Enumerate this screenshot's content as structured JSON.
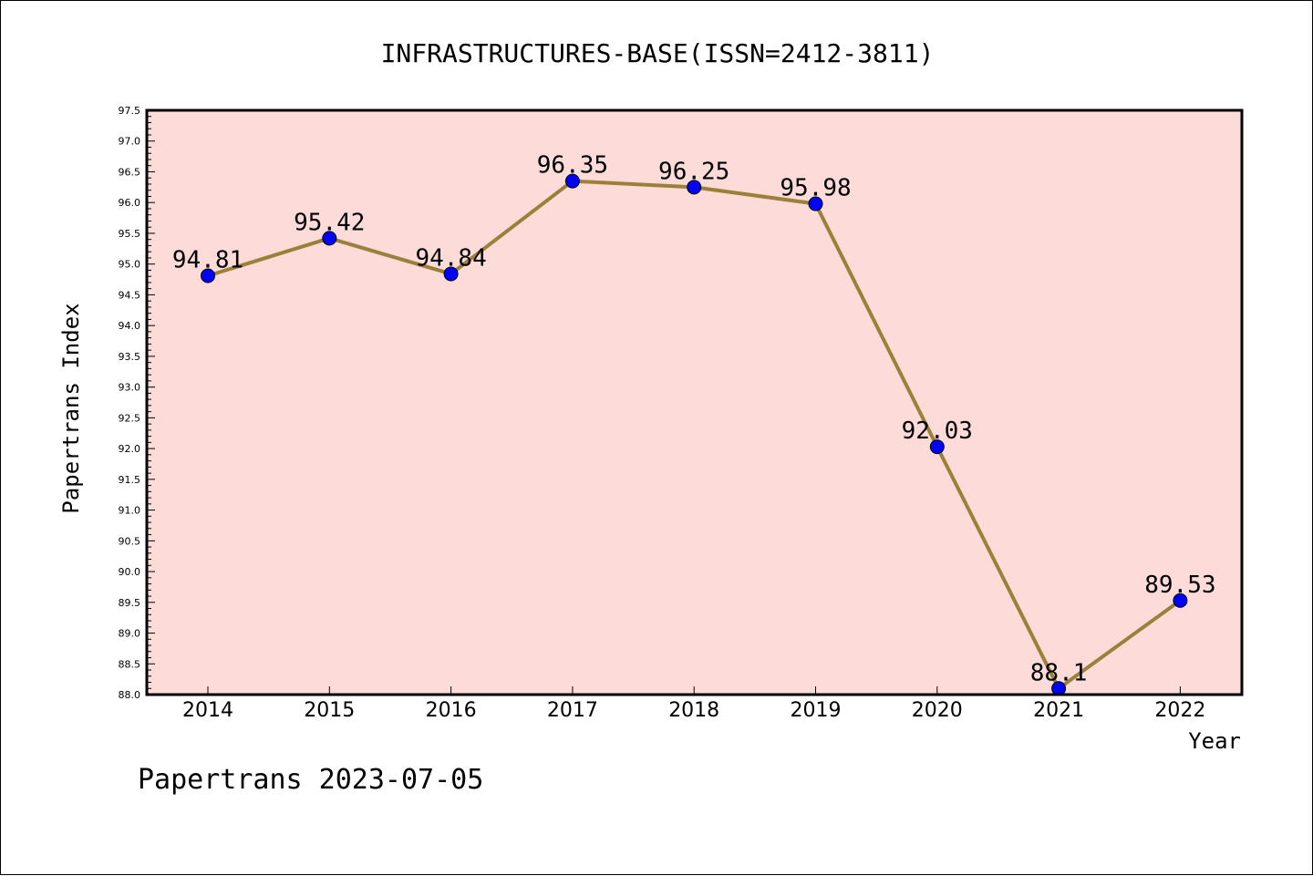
{
  "chart_data": {
    "type": "line",
    "title": "INFRASTRUCTURES-BASE(ISSN=2412-3811)",
    "xlabel": "Year",
    "ylabel": "Papertrans Index",
    "categories": [
      "2014",
      "2015",
      "2016",
      "2017",
      "2018",
      "2019",
      "2020",
      "2021",
      "2022"
    ],
    "values": [
      94.81,
      95.42,
      94.84,
      96.35,
      96.25,
      95.98,
      92.03,
      88.1,
      89.53
    ],
    "data_labels": [
      "94.81",
      "95.42",
      "94.84",
      "96.35",
      "96.25",
      "95.98",
      "92.03",
      "88.1",
      "89.53"
    ],
    "ylim": [
      88.0,
      97.5
    ],
    "yticks": [
      "88.0",
      "88.5",
      "89.0",
      "89.5",
      "90.0",
      "90.5",
      "91.0",
      "91.5",
      "92.0",
      "92.5",
      "93.0",
      "93.5",
      "94.0",
      "94.5",
      "95.0",
      "95.5",
      "96.0",
      "96.5",
      "97.0",
      "97.5"
    ],
    "grid": false,
    "legend": "none",
    "plot_background": "#fddbd8",
    "line_color": "#9b8039",
    "marker_color": "#0000ff",
    "footer": "Papertrans 2023-07-05"
  }
}
